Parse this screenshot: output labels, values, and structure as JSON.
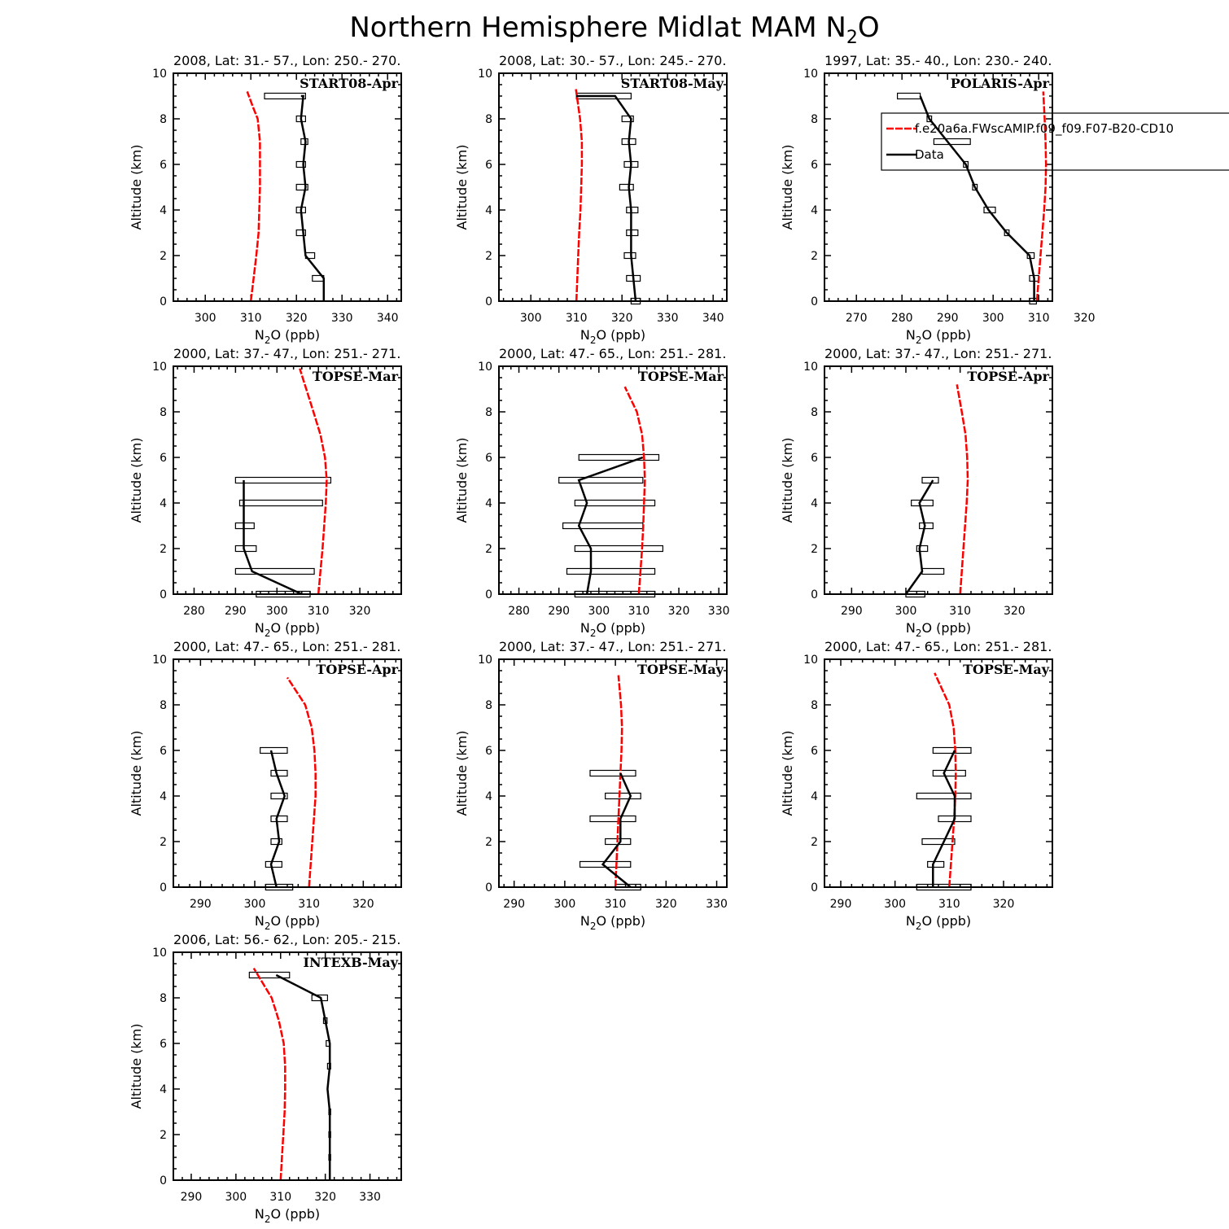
{
  "figure_title_main": "Northern Hemisphere Midlat MAM N",
  "figure_title_sub": "2",
  "figure_title_end": "O",
  "legend": {
    "model_label": "f.e20a6a.FWscAMIP.f09_f09.F07-B20-CD10",
    "data_label": "Data",
    "model_color": "#ff0000",
    "data_color": "#000000"
  },
  "chart_data": [
    {
      "type": "line",
      "title": "2008, Lat:  31.- 57., Lon: 250.- 270.",
      "campaign": "START08-Apr",
      "xlabel": "N2O (ppb)",
      "ylabel": "Altitude (km)",
      "xlim": [
        293,
        343
      ],
      "ylim": [
        0,
        10
      ],
      "xticks": [
        300,
        310,
        320,
        330,
        340
      ],
      "model": {
        "x": [
          310,
          310.6,
          311.2,
          311.7,
          312.0,
          312.0,
          311.5,
          310.5,
          309.2
        ],
        "y": [
          0,
          1,
          2,
          3,
          5,
          7,
          8,
          8.5,
          9.2
        ]
      },
      "data": {
        "x": [
          326,
          326,
          322,
          321.5,
          321,
          322,
          321.5,
          322,
          321,
          321.5,
          321
        ],
        "y": [
          0,
          1,
          2,
          3,
          4,
          5,
          6,
          7,
          8,
          9,
          9
        ]
      },
      "boxes": [
        [
          323.5,
          326,
          1
        ],
        [
          322,
          324,
          2
        ],
        [
          320,
          322,
          3
        ],
        [
          320,
          322,
          4
        ],
        [
          320,
          322.5,
          5
        ],
        [
          320,
          322,
          6
        ],
        [
          321,
          322.5,
          7
        ],
        [
          320,
          322,
          8
        ],
        [
          313,
          322,
          9
        ]
      ]
    },
    {
      "type": "line",
      "title": "2008, Lat:  30.- 57., Lon: 245.- 270.",
      "campaign": "START08-May",
      "xlabel": "N2O (ppb)",
      "ylabel": "Altitude (km)",
      "xlim": [
        293,
        343
      ],
      "ylim": [
        0,
        10
      ],
      "xticks": [
        300,
        310,
        320,
        330,
        340
      ],
      "model": {
        "x": [
          310,
          310.2,
          310.4,
          310.6,
          310.9,
          311.2,
          311.2,
          310.8,
          309.9
        ],
        "y": [
          0,
          1,
          2,
          3,
          4,
          6,
          7,
          8,
          9.3
        ]
      },
      "data": {
        "x": [
          323,
          322.5,
          322,
          322,
          322,
          321.5,
          322,
          321.5,
          322,
          318.5,
          310
        ],
        "y": [
          0,
          1,
          2,
          3,
          4,
          5,
          6,
          7,
          8,
          9,
          9
        ]
      },
      "boxes": [
        [
          322,
          324,
          0
        ],
        [
          321,
          324,
          1
        ],
        [
          320.5,
          323,
          2
        ],
        [
          321,
          323.5,
          3
        ],
        [
          321,
          323.5,
          4
        ],
        [
          319.5,
          322.5,
          5
        ],
        [
          320.5,
          323.5,
          6
        ],
        [
          320,
          323,
          7
        ],
        [
          320,
          322.5,
          8
        ],
        [
          310,
          322,
          9
        ]
      ]
    },
    {
      "type": "line",
      "title": "1997, Lat: 35.- 40., Lon: 230.- 240.",
      "campaign": "POLARIS-Apr",
      "xlabel": "N2O (ppb)",
      "ylabel": "Altitude (km)",
      "xlim": [
        263,
        313
      ],
      "ylim": [
        0,
        10
      ],
      "xticks": [
        270,
        280,
        290,
        300,
        310,
        320
      ],
      "model": {
        "x": [
          309.6,
          310.0,
          310.4,
          310.8,
          311.2,
          311.5,
          311.6,
          311.5,
          311.3,
          311.0
        ],
        "y": [
          0,
          1,
          2,
          3,
          4,
          5,
          6,
          7,
          8,
          9.2
        ]
      },
      "data": {
        "x": [
          309,
          309,
          308,
          303,
          299,
          296,
          294,
          290,
          286,
          284
        ],
        "y": [
          0,
          1,
          2,
          3,
          4,
          5,
          6,
          7,
          8,
          9
        ]
      },
      "boxes": [
        [
          308,
          309.5,
          0
        ],
        [
          308,
          310,
          1
        ],
        [
          307.5,
          309,
          2
        ],
        [
          302.5,
          303.5,
          3
        ],
        [
          298,
          300.5,
          4
        ],
        [
          295.5,
          296.5,
          5
        ],
        [
          293.5,
          294.5,
          6
        ],
        [
          287,
          295,
          7
        ],
        [
          285.5,
          286.5,
          8
        ],
        [
          279,
          284,
          9
        ]
      ],
      "legend": true
    },
    {
      "type": "line",
      "title": "2000, Lat: 37.- 47., Lon: 251.- 271.",
      "campaign": "TOPSE-Mar",
      "xlabel": "N2O (ppb)",
      "ylabel": "Altitude (km)",
      "xlim": [
        275,
        330
      ],
      "ylim": [
        0,
        10
      ],
      "xticks": [
        280,
        290,
        300,
        310,
        320
      ],
      "model": {
        "x": [
          310,
          310.5,
          311,
          311.4,
          311.8,
          312.0,
          311.6,
          310.5,
          308.8,
          305.5
        ],
        "y": [
          0,
          1,
          2,
          3,
          4,
          5,
          6,
          7,
          8,
          9.9
        ]
      },
      "data": {
        "x": [
          306,
          294,
          292,
          292,
          292,
          292
        ],
        "y": [
          0,
          1,
          2,
          3,
          4,
          5
        ]
      },
      "boxes": [
        [
          295,
          308,
          0
        ],
        [
          290,
          309,
          1
        ],
        [
          290,
          295,
          2
        ],
        [
          290,
          294.5,
          3
        ],
        [
          291,
          311,
          4
        ],
        [
          290,
          313,
          5
        ]
      ]
    },
    {
      "type": "line",
      "title": "2000, Lat: 47.- 65., Lon: 251.- 281.",
      "campaign": "TOPSE-Mar",
      "xlabel": "N2O (ppb)",
      "ylabel": "Altitude (km)",
      "xlim": [
        275,
        332
      ],
      "ylim": [
        0,
        10
      ],
      "xticks": [
        280,
        290,
        300,
        310,
        320,
        330
      ],
      "model": {
        "x": [
          310,
          310.4,
          310.8,
          311.1,
          311.3,
          311.5,
          311.3,
          310.8,
          309.5,
          306.5
        ],
        "y": [
          0,
          1,
          2,
          3,
          4,
          5,
          6,
          7,
          8,
          9.1
        ]
      },
      "data": {
        "x": [
          297,
          298,
          298,
          295,
          297,
          295,
          311
        ],
        "y": [
          0,
          1,
          2,
          3,
          4,
          5,
          6
        ]
      },
      "boxes": [
        [
          294,
          314,
          0
        ],
        [
          292,
          314,
          1
        ],
        [
          294,
          316,
          2
        ],
        [
          291,
          311,
          3
        ],
        [
          294,
          314,
          4
        ],
        [
          290,
          311,
          5
        ],
        [
          295,
          315,
          6
        ]
      ]
    },
    {
      "type": "line",
      "title": "2000, Lat: 37.- 47., Lon: 251.- 271.",
      "campaign": "TOPSE-Apr",
      "xlabel": "N2O (ppb)",
      "ylabel": "Altitude (km)",
      "xlim": [
        285,
        327
      ],
      "ylim": [
        0,
        10
      ],
      "xticks": [
        290,
        300,
        310,
        320
      ],
      "model": {
        "x": [
          310,
          310.3,
          310.6,
          310.9,
          311.2,
          311.4,
          311.3,
          311.0,
          310.3,
          309.4
        ],
        "y": [
          0,
          1,
          2,
          3,
          4,
          5,
          6,
          7,
          8,
          9.2
        ]
      },
      "data": {
        "x": [
          300,
          303,
          302.5,
          303.5,
          302.5,
          305
        ],
        "y": [
          0,
          1,
          2,
          3,
          4,
          5
        ]
      },
      "boxes": [
        [
          300,
          303.5,
          0
        ],
        [
          303,
          307,
          1
        ],
        [
          302,
          304,
          2
        ],
        [
          302.5,
          305,
          3
        ],
        [
          301,
          305,
          4
        ],
        [
          303,
          306,
          5
        ]
      ]
    },
    {
      "type": "line",
      "title": "2000, Lat: 47.- 65., Lon: 251.- 281.",
      "campaign": "TOPSE-Apr",
      "xlabel": "N2O (ppb)",
      "ylabel": "Altitude (km)",
      "xlim": [
        285,
        327
      ],
      "ylim": [
        0,
        10
      ],
      "xticks": [
        290,
        300,
        310,
        320
      ],
      "model": {
        "x": [
          310,
          310.3,
          310.6,
          310.9,
          311.2,
          311.2,
          311.0,
          310.5,
          309.3,
          306
        ],
        "y": [
          0,
          1,
          2,
          3,
          4,
          5,
          6,
          7,
          8,
          9.2
        ]
      },
      "data": {
        "x": [
          304,
          303,
          304.5,
          304,
          305.5,
          304,
          303
        ],
        "y": [
          0,
          1,
          2,
          3,
          4,
          5,
          6
        ]
      },
      "boxes": [
        [
          302,
          307,
          0
        ],
        [
          302,
          305,
          1
        ],
        [
          303,
          305,
          2
        ],
        [
          303,
          306,
          3
        ],
        [
          303,
          306,
          4
        ],
        [
          303,
          306,
          5
        ],
        [
          301,
          306,
          6
        ]
      ]
    },
    {
      "type": "line",
      "title": "2000, Lat: 37.- 47., Lon: 251.- 271.",
      "campaign": "TOPSE-May",
      "xlabel": "N2O (ppb)",
      "ylabel": "Altitude (km)",
      "xlim": [
        287,
        332
      ],
      "ylim": [
        0,
        10
      ],
      "xticks": [
        290,
        300,
        310,
        320,
        330
      ],
      "model": {
        "x": [
          310,
          310.2,
          310.4,
          310.6,
          310.8,
          311.0,
          311.2,
          311.3,
          311.1,
          310.6
        ],
        "y": [
          0,
          1,
          2,
          3,
          4,
          5,
          6,
          7,
          8,
          9.3
        ]
      },
      "data": {
        "x": [
          313,
          307.5,
          311,
          311,
          313,
          311
        ],
        "y": [
          0,
          1,
          2,
          3,
          4,
          5
        ]
      },
      "boxes": [
        [
          310,
          315,
          0
        ],
        [
          303,
          313,
          1
        ],
        [
          308,
          313,
          2
        ],
        [
          305,
          314,
          3
        ],
        [
          308,
          315,
          4
        ],
        [
          305,
          314,
          5
        ]
      ]
    },
    {
      "type": "line",
      "title": "2000, Lat: 47.- 65., Lon: 251.- 281.",
      "campaign": "TOPSE-May",
      "xlabel": "N2O (ppb)",
      "ylabel": "Altitude (km)",
      "xlim": [
        287,
        329
      ],
      "ylim": [
        0,
        10
      ],
      "xticks": [
        290,
        300,
        310,
        320
      ],
      "model": {
        "x": [
          310,
          310.3,
          310.6,
          310.9,
          311.1,
          311.2,
          311.1,
          310.8,
          310.0,
          307.3
        ],
        "y": [
          0,
          1,
          2,
          3,
          4,
          5,
          6,
          7,
          8,
          9.4
        ]
      },
      "data": {
        "x": [
          307,
          307,
          309,
          311,
          311,
          309,
          311
        ],
        "y": [
          0,
          1,
          2,
          3,
          4,
          5,
          6
        ]
      },
      "boxes": [
        [
          304,
          314,
          0
        ],
        [
          306,
          309,
          1
        ],
        [
          305,
          311,
          2
        ],
        [
          308,
          314,
          3
        ],
        [
          304,
          314,
          4
        ],
        [
          307,
          313,
          5
        ],
        [
          307,
          314,
          6
        ]
      ]
    },
    {
      "type": "line",
      "title": "2006, Lat: 56.- 62., Lon: 205.- 215.",
      "campaign": "INTEXB-May",
      "xlabel": "N2O (ppb)",
      "ylabel": "Altitude (km)",
      "xlim": [
        286,
        337
      ],
      "ylim": [
        0,
        10
      ],
      "xticks": [
        290,
        300,
        310,
        320,
        330
      ],
      "model": {
        "x": [
          310,
          310.3,
          310.6,
          310.9,
          311.0,
          311.0,
          310.7,
          309.6,
          308.0,
          304.0
        ],
        "y": [
          0,
          1,
          2,
          3,
          4,
          5,
          6,
          7,
          8,
          9.3
        ]
      },
      "data": {
        "x": [
          321,
          321,
          321,
          321,
          320.5,
          321,
          321,
          320,
          319,
          309
        ],
        "y": [
          0,
          1,
          2,
          3,
          4,
          5,
          6,
          7,
          8,
          9
        ]
      },
      "boxes": [
        [
          320.8,
          321.2,
          1
        ],
        [
          320.8,
          321.2,
          2
        ],
        [
          320.8,
          321.2,
          3
        ],
        [
          320.5,
          321.2,
          5
        ],
        [
          320.2,
          321,
          6
        ],
        [
          319.6,
          320.4,
          7
        ],
        [
          317,
          320.5,
          8
        ],
        [
          303,
          312,
          9
        ]
      ]
    }
  ]
}
